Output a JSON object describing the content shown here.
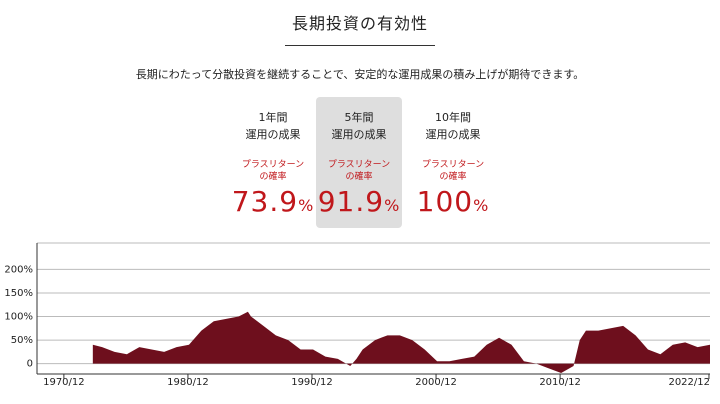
{
  "header": {
    "title": "長期投資の有効性",
    "subtitle": "長期にわたって分散投資を継続することで、安定的な運用成果の積み上げが期待できます。"
  },
  "stats": [
    {
      "period": "1年間",
      "label": "運用の成果",
      "caption": [
        "プラスリターン",
        "の確率"
      ],
      "value": 73.9,
      "unit": "%",
      "highlight": false
    },
    {
      "period": "5年間",
      "label": "運用の成果",
      "caption": [
        "プラスリターン",
        "の確率"
      ],
      "value": 91.9,
      "unit": "%",
      "highlight": true
    },
    {
      "period": "10年間",
      "label": "運用の成果",
      "caption": [
        "プラスリターン",
        "の確率"
      ],
      "value": 100,
      "unit": "%",
      "highlight": false
    }
  ],
  "chart_data": {
    "type": "area",
    "color": "#6e0f1d",
    "grid": true,
    "x": [
      "1973/04",
      "1974/01",
      "1975/01",
      "1976/01",
      "1977/01",
      "1978/01",
      "1979/01",
      "1980/01",
      "1981/01",
      "1982/01",
      "1983/01",
      "1984/01",
      "1985/01",
      "1985/10",
      "1986/01",
      "1987/01",
      "1988/01",
      "1989/01",
      "1990/01",
      "1991/01",
      "1992/01",
      "1993/01",
      "1994/01",
      "1994/07",
      "1995/01",
      "1996/01",
      "1997/01",
      "1998/01",
      "1999/01",
      "2000/01",
      "2001/01",
      "2002/01",
      "2003/01",
      "2004/01",
      "2005/01",
      "2006/01",
      "2007/01",
      "2008/01",
      "2009/01",
      "2010/01",
      "2011/01",
      "2012/01",
      "2012/07",
      "2013/01",
      "2014/01",
      "2015/01",
      "2016/01",
      "2017/01",
      "2018/01",
      "2019/01",
      "2020/01",
      "2021/01",
      "2022/01",
      "2023/01"
    ],
    "values": [
      40,
      35,
      25,
      20,
      35,
      30,
      25,
      35,
      40,
      70,
      90,
      95,
      100,
      110,
      100,
      80,
      60,
      50,
      30,
      30,
      15,
      10,
      -5,
      10,
      30,
      50,
      60,
      60,
      50,
      30,
      5,
      5,
      10,
      15,
      40,
      55,
      40,
      5,
      0,
      -10,
      -20,
      -5,
      50,
      70,
      70,
      75,
      80,
      60,
      30,
      20,
      40,
      45,
      35,
      40
    ],
    "xlim": [
      "1968/10",
      "2023/01"
    ],
    "xticks": [
      "1970/12",
      "1980/12",
      "1990/12",
      "2000/12",
      "2010/12",
      "2022/12"
    ],
    "ylim": [
      -22,
      256
    ],
    "yticks": [
      0,
      {
        "value": 50,
        "label": "50%"
      },
      {
        "value": 100,
        "label": "100%"
      },
      {
        "value": 150,
        "label": "150%"
      },
      {
        "value": 200,
        "label": "200%"
      }
    ]
  }
}
